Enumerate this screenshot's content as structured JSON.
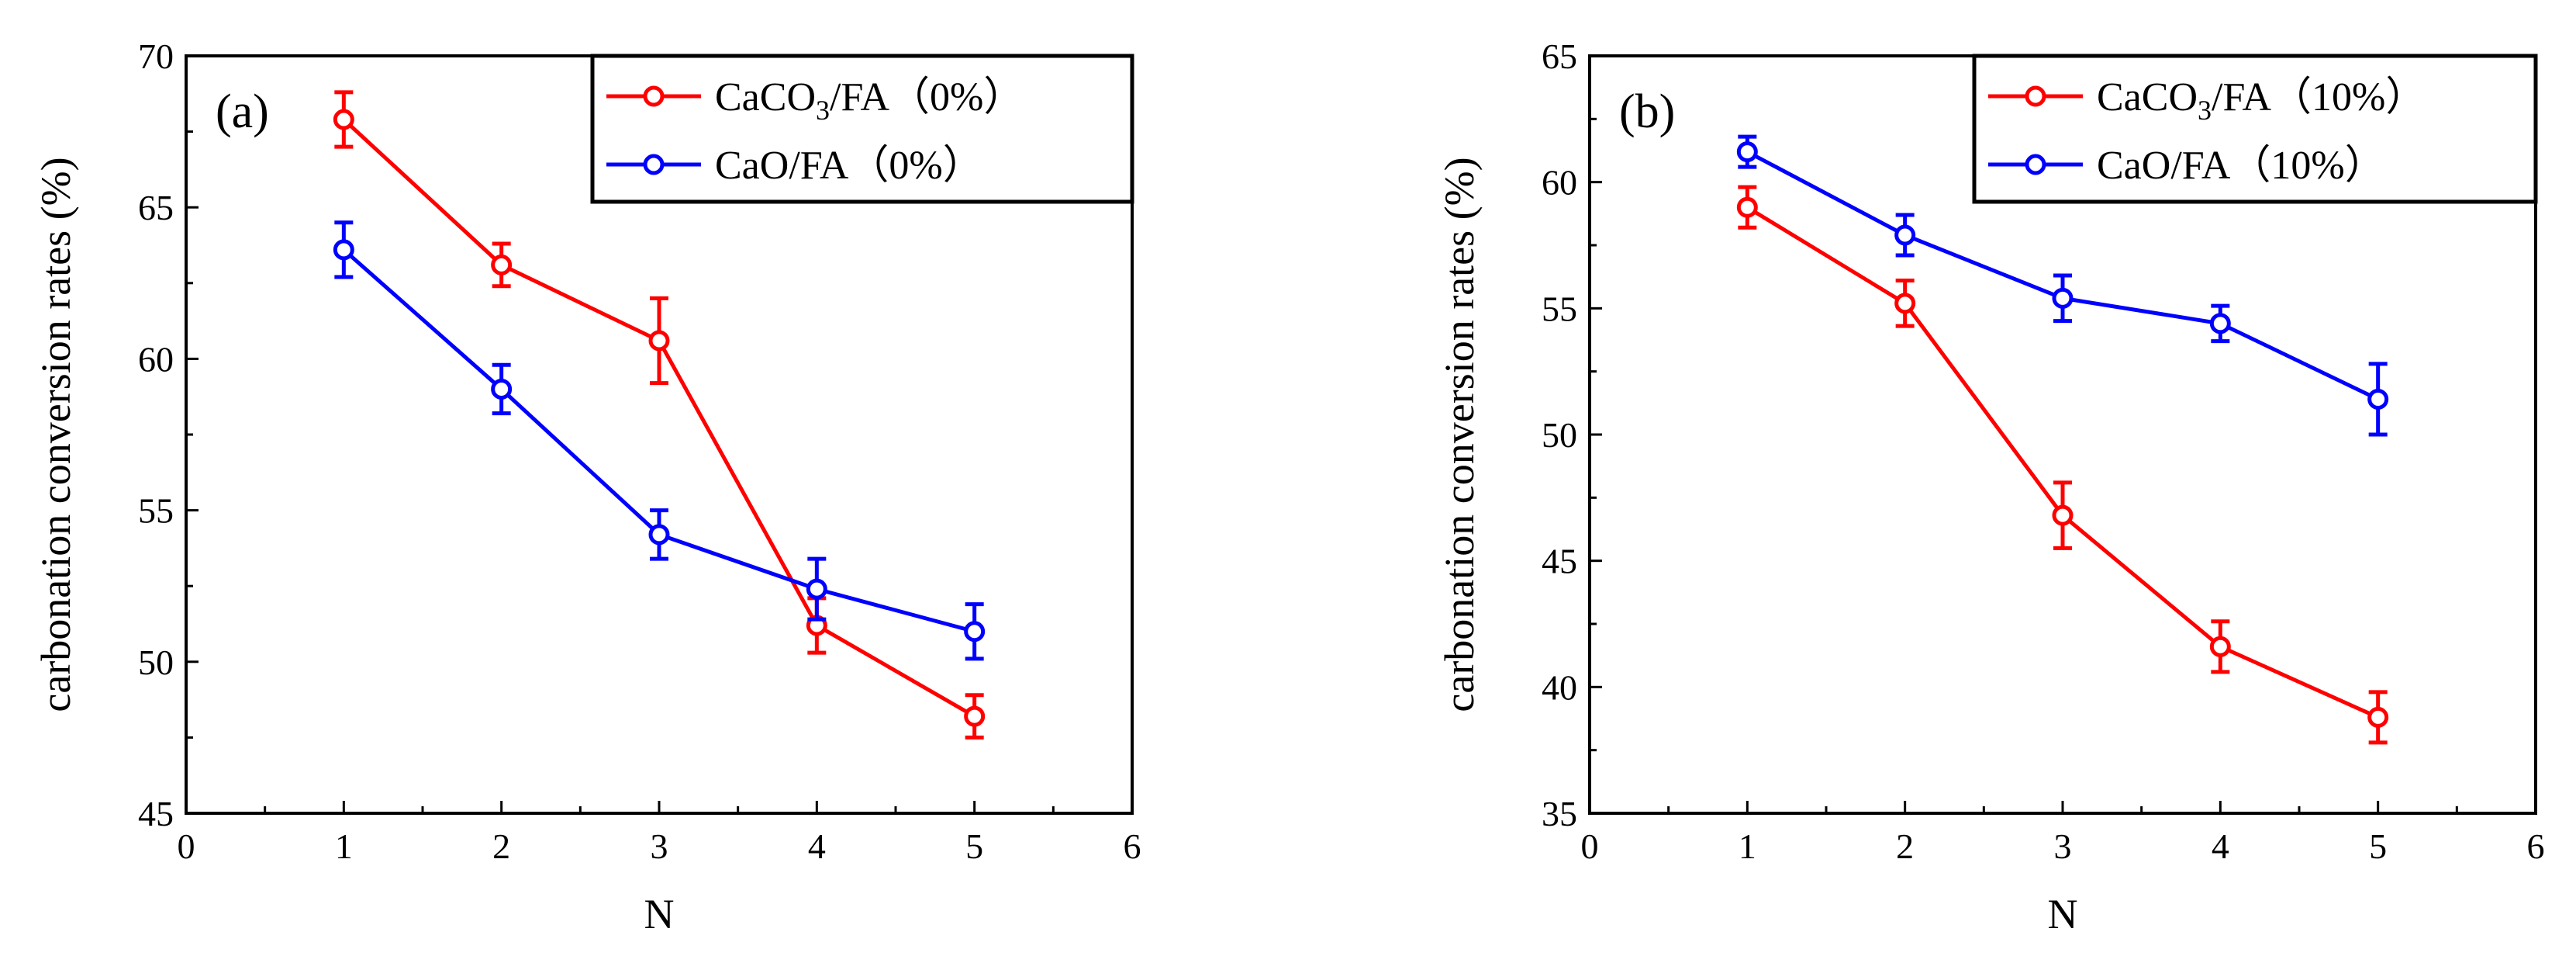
{
  "chart_data": [
    {
      "panel_label": "(a)",
      "type": "line",
      "xlabel": "N",
      "ylabel": "carbonation conversion rates (%)",
      "xlim": [
        0,
        6
      ],
      "ylim": [
        45,
        70
      ],
      "xticks": [
        0,
        1,
        2,
        3,
        4,
        5,
        6
      ],
      "yticks": [
        45,
        50,
        55,
        60,
        65,
        70
      ],
      "grid": false,
      "legend_position": "top-right",
      "series": [
        {
          "name": "CaCO3/FA (0%)",
          "legend_parts": [
            "CaCO",
            "3",
            "/FA（0%）"
          ],
          "color": "#ff0000",
          "x": [
            1,
            2,
            3,
            4,
            5
          ],
          "y": [
            67.9,
            63.1,
            60.6,
            51.2,
            48.2
          ],
          "err": [
            0.9,
            0.7,
            1.4,
            0.9,
            0.7
          ]
        },
        {
          "name": "CaO/FA (0%)",
          "legend_parts": [
            "CaO/FA（0%）",
            "",
            ""
          ],
          "color": "#0000ff",
          "x": [
            1,
            2,
            3,
            4,
            5
          ],
          "y": [
            63.6,
            59.0,
            54.2,
            52.4,
            51.0
          ],
          "err": [
            0.9,
            0.8,
            0.8,
            1.0,
            0.9
          ]
        }
      ]
    },
    {
      "panel_label": "(b)",
      "type": "line",
      "xlabel": "N",
      "ylabel": "carbonation conversion rates (%)",
      "xlim": [
        0,
        6
      ],
      "ylim": [
        35,
        65
      ],
      "xticks": [
        0,
        1,
        2,
        3,
        4,
        5,
        6
      ],
      "yticks": [
        35,
        40,
        45,
        50,
        55,
        60,
        65
      ],
      "grid": false,
      "legend_position": "top-right",
      "series": [
        {
          "name": "CaCO3/FA (10%)",
          "legend_parts": [
            "CaCO",
            "3",
            "/FA（10%）"
          ],
          "color": "#ff0000",
          "x": [
            1,
            2,
            3,
            4,
            5
          ],
          "y": [
            59.0,
            55.2,
            46.8,
            41.6,
            38.8
          ],
          "err": [
            0.8,
            0.9,
            1.3,
            1.0,
            1.0
          ]
        },
        {
          "name": "CaO/FA (10%)",
          "legend_parts": [
            "CaO/FA（10%）",
            "",
            ""
          ],
          "color": "#0000ff",
          "x": [
            1,
            2,
            3,
            4,
            5
          ],
          "y": [
            61.2,
            57.9,
            55.4,
            54.4,
            51.4
          ],
          "err": [
            0.6,
            0.8,
            0.9,
            0.7,
            1.4
          ]
        }
      ]
    }
  ]
}
